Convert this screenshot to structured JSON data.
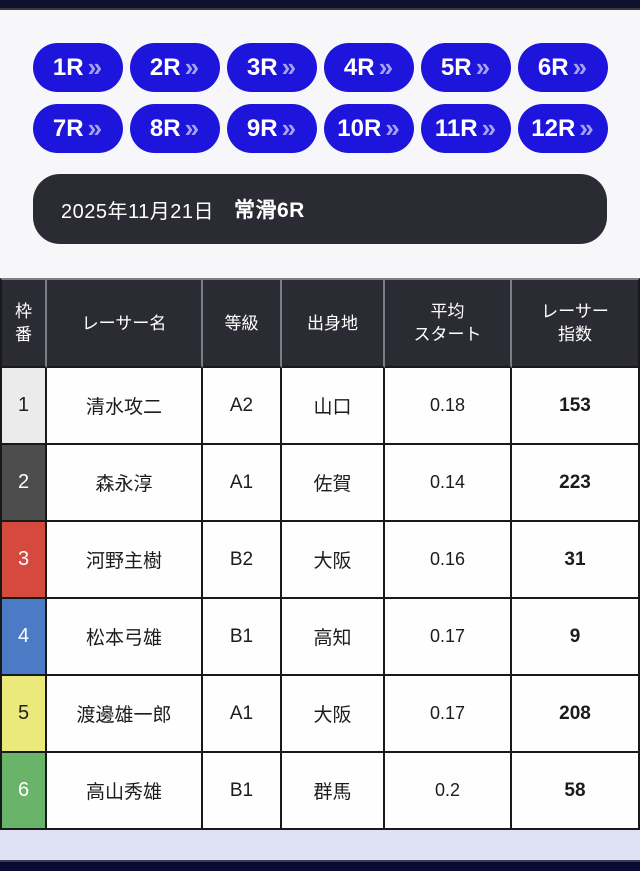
{
  "colors": {
    "nav_button": "#1e15dd",
    "chevron": "#a5a2f0",
    "info_bar_bg": "#2b2b33",
    "table_header_bg": "#2b2b34",
    "top_bar": "#10102f",
    "bottom_bar": "#0a0a33",
    "footer_area": "#dfe2f5",
    "page_bg": "#f7f7f9"
  },
  "race_nav": {
    "chevron": "»",
    "buttons": [
      {
        "label": "1R"
      },
      {
        "label": "2R"
      },
      {
        "label": "3R"
      },
      {
        "label": "4R"
      },
      {
        "label": "5R"
      },
      {
        "label": "6R"
      },
      {
        "label": "7R"
      },
      {
        "label": "8R"
      },
      {
        "label": "9R"
      },
      {
        "label": "10R"
      },
      {
        "label": "11R"
      },
      {
        "label": "12R"
      }
    ]
  },
  "race_info": {
    "date": "2025年11月21日",
    "race": "常滑6R"
  },
  "table": {
    "columns": {
      "frame": "枠\n番",
      "name": "レーサー名",
      "class": "等級",
      "origin": "出身地",
      "avg_start": "平均\nスタート",
      "index": "レーサー\n指数"
    },
    "rows": [
      {
        "frame": "1",
        "name": "清水攻二",
        "class": "A2",
        "origin": "山口",
        "avg_start": "0.18",
        "index": "153",
        "frame_bg": "#ebebeb",
        "frame_fg": "#222222"
      },
      {
        "frame": "2",
        "name": "森永淳",
        "class": "A1",
        "origin": "佐賀",
        "avg_start": "0.14",
        "index": "223",
        "frame_bg": "#4d4d4d",
        "frame_fg": "#ffffff"
      },
      {
        "frame": "3",
        "name": "河野主樹",
        "class": "B2",
        "origin": "大阪",
        "avg_start": "0.16",
        "index": "31",
        "frame_bg": "#d5493f",
        "frame_fg": "#ffffff"
      },
      {
        "frame": "4",
        "name": "松本弓雄",
        "class": "B1",
        "origin": "高知",
        "avg_start": "0.17",
        "index": "9",
        "frame_bg": "#4a7bc4",
        "frame_fg": "#ffffff"
      },
      {
        "frame": "5",
        "name": "渡邊雄一郎",
        "class": "A1",
        "origin": "大阪",
        "avg_start": "0.17",
        "index": "208",
        "frame_bg": "#ece97c",
        "frame_fg": "#222222"
      },
      {
        "frame": "6",
        "name": "高山秀雄",
        "class": "B1",
        "origin": "群馬",
        "avg_start": "0.2",
        "index": "58",
        "frame_bg": "#69b469",
        "frame_fg": "#ffffff"
      }
    ]
  }
}
